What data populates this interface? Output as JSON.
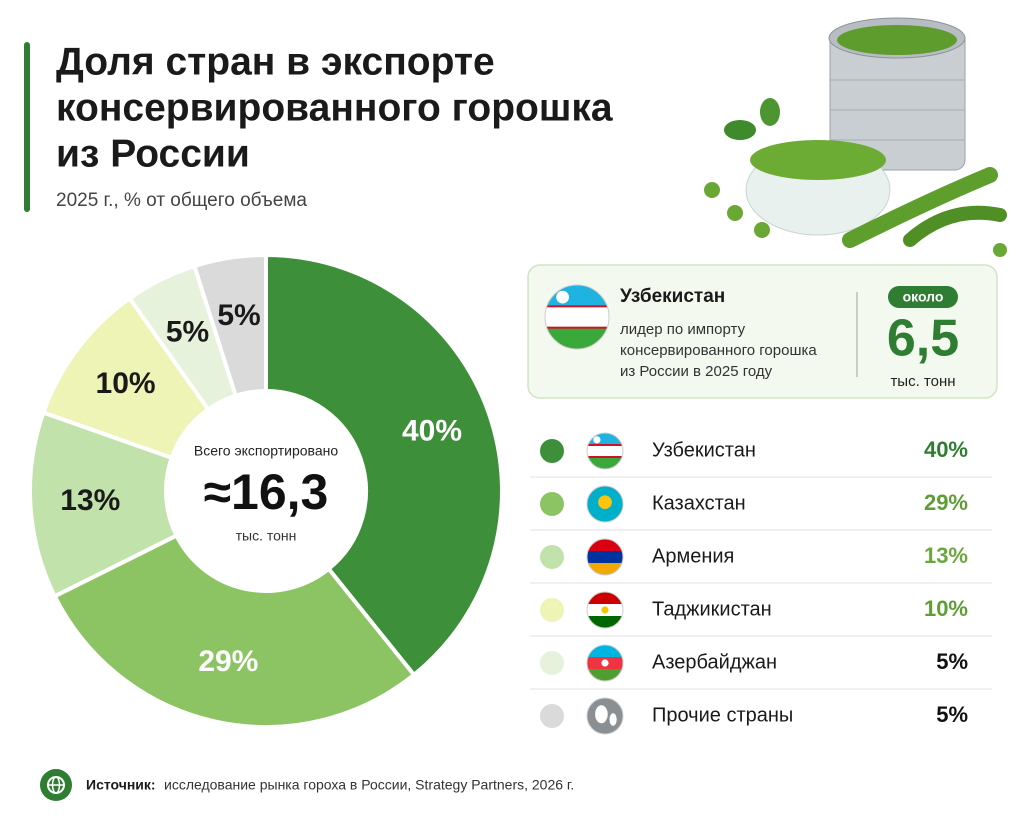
{
  "chart_data": {
    "type": "donut",
    "title": [
      "Доля стран в экспорте",
      "консервированного горошка",
      "из России"
    ],
    "subtitle": "2025 г., % от общего объема",
    "categories": [
      "Узбекистан",
      "Казахстан",
      "Армения",
      "Таджикистан",
      "Азербайджан",
      "Прочие страны"
    ],
    "values": [
      40,
      29,
      13,
      10,
      5,
      5
    ],
    "value_labels": [
      "40%",
      "29%",
      "13%",
      "10%",
      "5%",
      "5%"
    ],
    "colors": [
      "#3d8f3a",
      "#8cc464",
      "#c2e2ab",
      "#eef3b6",
      "#e6f2dc",
      "#dadada"
    ],
    "legend_value_colors": [
      "#2e7d32",
      "#5e9e35",
      "#6aa83e",
      "#5e9e35",
      "#111111",
      "#111111"
    ],
    "center": {
      "caption": "Всего экспортировано",
      "value": "≈16,3",
      "unit": "тыс. тонн"
    },
    "highlight": {
      "country": "Узбекистан",
      "description": [
        "лидер по импорту",
        "консервированного горошка",
        "из России в 2025 году"
      ],
      "badge": "около",
      "value": "6,5",
      "unit": "тыс. тонн"
    },
    "source": {
      "label": "Источник:",
      "text": "исследование рынка гороха в России, Strategy Partners, 2026 г."
    }
  }
}
